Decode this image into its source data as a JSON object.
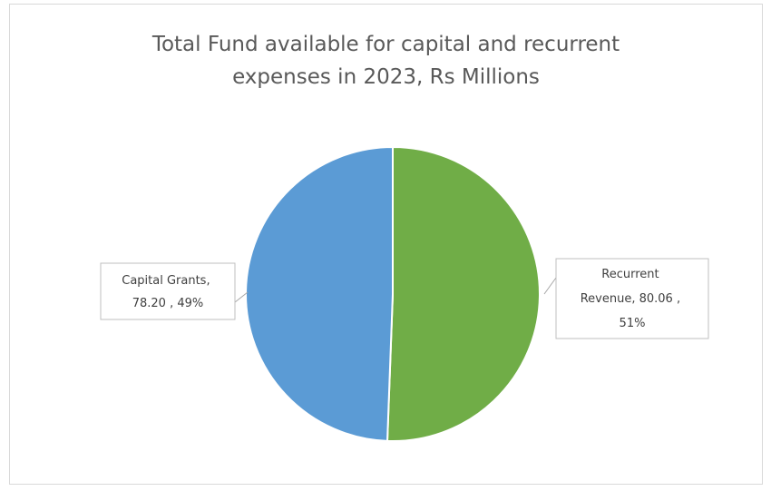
{
  "chart_data": {
    "type": "pie",
    "title": "Total Fund available for capital and recurrent expenses in 2023, Rs Millions",
    "title_lines": [
      "Total Fund available for capital and recurrent",
      "expenses in 2023, Rs Millions"
    ],
    "slices": [
      {
        "name": "Recurrent Revenue",
        "value": 80.06,
        "percent": 51,
        "color": "#70ad47",
        "label_lines": [
          "Recurrent",
          "Revenue,  80.06 ,",
          "51%"
        ]
      },
      {
        "name": "Capital Grants",
        "value": 78.2,
        "percent": 49,
        "color": "#5b9bd5",
        "label_lines": [
          "Capital Grants,",
          "78.20 , 49%"
        ]
      }
    ],
    "legend": "none"
  }
}
